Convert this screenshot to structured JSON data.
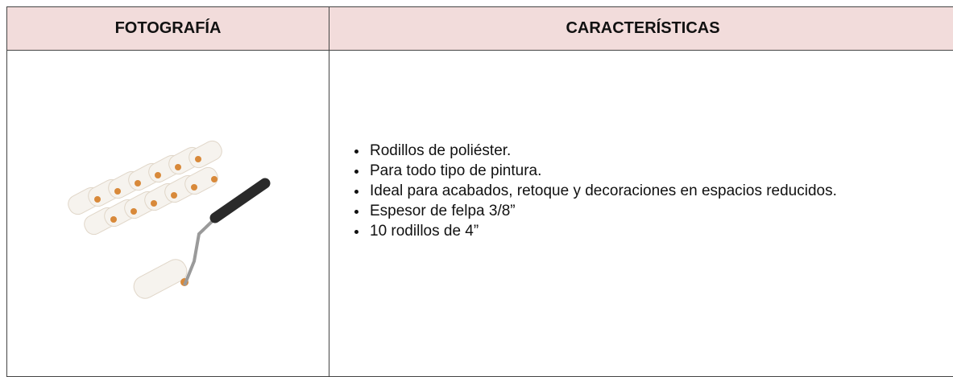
{
  "table": {
    "headers": [
      "FOTOGRAFÍA",
      "CARACTERÍSTICAS"
    ],
    "rows": [
      [
        null,
        [
          "Rodillos de poliéster.",
          "Para todo tipo de pintura.",
          "Ideal para acabados, retoque y decoraciones en espacios reducidos.",
          "Espesor de felpa 3/8”",
          "10 rodillos de 4”"
        ]
      ]
    ]
  }
}
